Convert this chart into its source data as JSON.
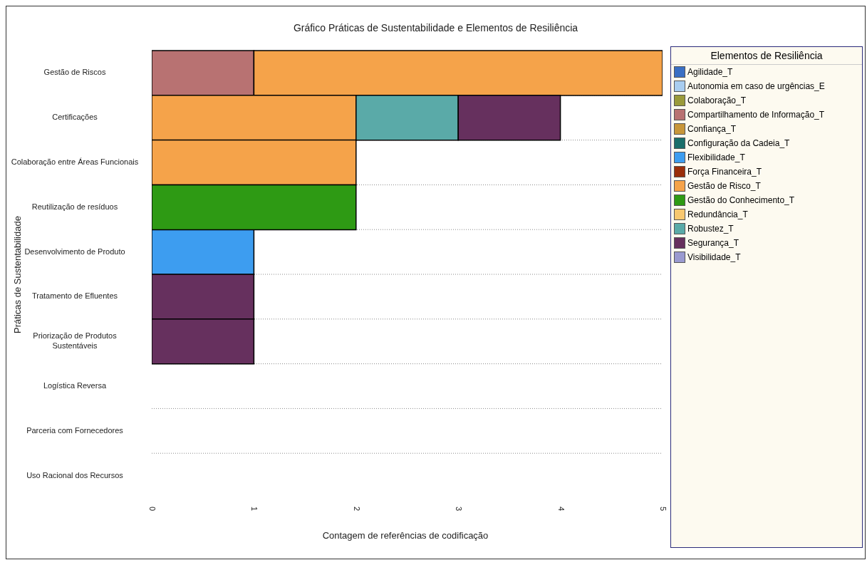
{
  "chart_data": {
    "type": "bar",
    "orientation": "horizontal",
    "stacked": true,
    "title": "Gráfico Práticas de Sustentabilidade e Elementos de Resiliência",
    "xlabel": "Contagem de referências de codificação",
    "ylabel": "Práticas de Sustentabilidade",
    "legend_title": "Elementos de Resiliência",
    "legend": "top right",
    "grid": "y",
    "line_style": "dotted",
    "categories": [
      "Gestão de Riscos",
      "Certificações",
      "Colaboração entre Áreas Funcionais",
      "Reutilização de resíduos",
      "Desenvolvimento de Produto",
      "Tratamento de Efluentes",
      "Priorização de Produtos Sustentáveis",
      "Logística Reversa",
      "Parceria com Fornecedores",
      "Uso Racional dos Recursos"
    ],
    "xlim": [
      0,
      5
    ],
    "xticks": [
      0,
      1,
      2,
      3,
      4,
      5
    ],
    "series": [
      {
        "name": "Agilidade_T",
        "color": "#3a6fc4",
        "values": [
          0,
          0,
          0,
          0,
          0,
          0,
          0,
          0,
          0,
          0
        ]
      },
      {
        "name": "Autonomia em caso de urgências_E",
        "color": "#a9cdf0",
        "values": [
          0,
          0,
          0,
          0,
          0,
          0,
          0,
          0,
          0,
          0
        ]
      },
      {
        "name": "Colaboração_T",
        "color": "#9a9a3a",
        "values": [
          0,
          0,
          0,
          0,
          0,
          0,
          0,
          0,
          0,
          0
        ]
      },
      {
        "name": "Compartilhamento de Informação_T",
        "color": "#b87272",
        "values": [
          1,
          0,
          0,
          0,
          0,
          0,
          0,
          0,
          0,
          0
        ]
      },
      {
        "name": "Confiança_T",
        "color": "#c8963a",
        "values": [
          0,
          0,
          0,
          0,
          0,
          0,
          0,
          0,
          0,
          0
        ]
      },
      {
        "name": "Configuração da Cadeia_T",
        "color": "#1a6e6a",
        "values": [
          0,
          0,
          0,
          0,
          0,
          0,
          0,
          0,
          0,
          0
        ]
      },
      {
        "name": "Flexibilidade_T",
        "color": "#3d9df0",
        "values": [
          0,
          0,
          0,
          0,
          1,
          0,
          0,
          0,
          0,
          0
        ]
      },
      {
        "name": "Força Financeira_T",
        "color": "#9a2e0a",
        "values": [
          0,
          0,
          0,
          0,
          0,
          0,
          0,
          0,
          0,
          0
        ]
      },
      {
        "name": "Gestão de Risco_T",
        "color": "#f5a34a",
        "values": [
          4,
          2,
          2,
          0,
          0,
          0,
          0,
          0,
          0,
          0
        ]
      },
      {
        "name": "Gestão do Conhecimento_T",
        "color": "#2e9a14",
        "values": [
          0,
          0,
          0,
          2,
          0,
          0,
          0,
          0,
          0,
          0
        ]
      },
      {
        "name": "Redundância_T",
        "color": "#f8c870",
        "values": [
          0,
          0,
          0,
          0,
          0,
          0,
          0,
          0,
          0,
          0
        ]
      },
      {
        "name": "Robustez_T",
        "color": "#5aaaa8",
        "values": [
          0,
          1,
          0,
          0,
          0,
          0,
          0,
          0,
          0,
          0
        ]
      },
      {
        "name": "Segurança_T",
        "color": "#66305e",
        "values": [
          0,
          1,
          0,
          0,
          0,
          1,
          1,
          0,
          0,
          0
        ]
      },
      {
        "name": "Visibilidade_T",
        "color": "#9a9ad0",
        "values": [
          0,
          0,
          0,
          0,
          0,
          0,
          0,
          0,
          0,
          0
        ]
      }
    ]
  }
}
